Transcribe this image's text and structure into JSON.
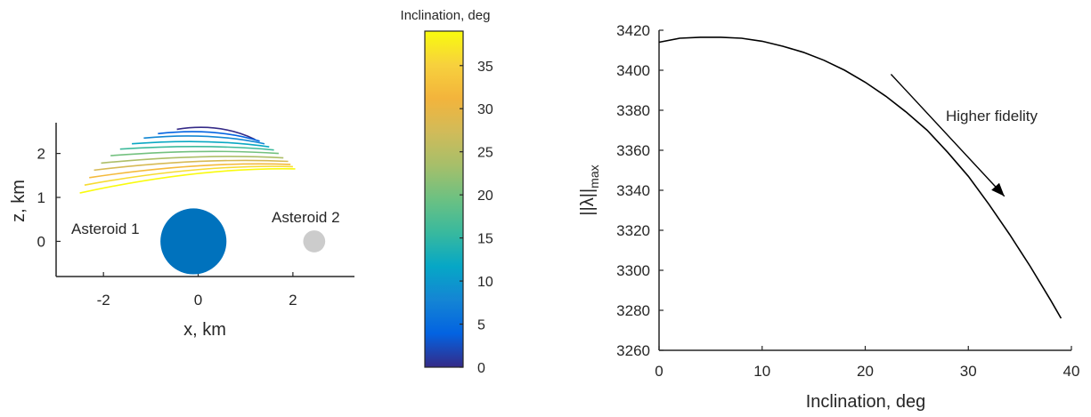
{
  "chart_data": [
    {
      "type": "line",
      "xlabel": "x, km",
      "ylabel": "z, km",
      "xlim": [
        -3,
        3.3
      ],
      "ylim": [
        -0.8,
        2.7
      ],
      "x_ticks": [
        -2,
        0,
        2
      ],
      "x_tick_labels": [
        "-2",
        "0",
        "2"
      ],
      "y_ticks": [
        0,
        1,
        2
      ],
      "y_tick_labels": [
        "0",
        "1",
        "2"
      ],
      "grid": false,
      "colormap_series": "parula",
      "trajectories": [
        {
          "inclination": 0,
          "x_start": 1.2,
          "z_start": 2.32,
          "x_end": -0.45,
          "z_end": 2.55
        },
        {
          "inclination": 4,
          "x_start": 1.3,
          "z_start": 2.28,
          "x_end": -0.85,
          "z_end": 2.45
        },
        {
          "inclination": 8,
          "x_start": 1.4,
          "z_start": 2.22,
          "x_end": -1.15,
          "z_end": 2.35
        },
        {
          "inclination": 12,
          "x_start": 1.5,
          "z_start": 2.15,
          "x_end": -1.4,
          "z_end": 2.22
        },
        {
          "inclination": 16,
          "x_start": 1.6,
          "z_start": 2.08,
          "x_end": -1.65,
          "z_end": 2.1
        },
        {
          "inclination": 20,
          "x_start": 1.7,
          "z_start": 2.0,
          "x_end": -1.85,
          "z_end": 1.95
        },
        {
          "inclination": 24,
          "x_start": 1.8,
          "z_start": 1.9,
          "x_end": -2.05,
          "z_end": 1.78
        },
        {
          "inclination": 28,
          "x_start": 1.9,
          "z_start": 1.82,
          "x_end": -2.2,
          "z_end": 1.62
        },
        {
          "inclination": 32,
          "x_start": 1.95,
          "z_start": 1.75,
          "x_end": -2.3,
          "z_end": 1.45
        },
        {
          "inclination": 36,
          "x_start": 2.0,
          "z_start": 1.7,
          "x_end": -2.4,
          "z_end": 1.28
        },
        {
          "inclination": 39,
          "x_start": 2.05,
          "z_start": 1.65,
          "x_end": -2.5,
          "z_end": 1.1
        }
      ],
      "bodies": [
        {
          "name": "Asteroid 1",
          "label": "Asteroid 1",
          "x": -0.1,
          "z": 0.0,
          "radius": 0.75,
          "color": "#0072BD"
        },
        {
          "name": "Asteroid 2",
          "label": "Asteroid 2",
          "x": 2.45,
          "z": 0.0,
          "radius": 0.25,
          "color": "#cccccc"
        }
      ]
    },
    {
      "type": "heatmap",
      "role": "colorbar",
      "title": "Inclination, deg",
      "colormap": "parula",
      "range": [
        0,
        39
      ],
      "ticks": [
        0,
        5,
        10,
        15,
        20,
        25,
        30,
        35
      ],
      "tick_labels": [
        "0",
        "5",
        "10",
        "15",
        "20",
        "25",
        "30",
        "35"
      ]
    },
    {
      "type": "line",
      "xlabel": "Inclination, deg",
      "ylabel": "||λ||max",
      "ylabel_main": "||λ||",
      "ylabel_sub": "max",
      "xlim": [
        0,
        40
      ],
      "ylim": [
        3260,
        3420
      ],
      "x_ticks": [
        0,
        10,
        20,
        30,
        40
      ],
      "x_tick_labels": [
        "0",
        "10",
        "20",
        "30",
        "40"
      ],
      "y_ticks": [
        3260,
        3280,
        3300,
        3320,
        3340,
        3360,
        3380,
        3400,
        3420
      ],
      "y_tick_labels": [
        "3260",
        "3280",
        "3300",
        "3320",
        "3340",
        "3360",
        "3380",
        "3400",
        "3420"
      ],
      "grid": false,
      "series": [
        {
          "x": [
            0,
            2,
            4,
            6,
            8,
            10,
            12,
            14,
            16,
            18,
            20,
            22,
            24,
            26,
            28,
            30,
            32,
            34,
            36,
            38,
            39
          ],
          "values": [
            3414,
            3416,
            3416.5,
            3416.5,
            3416,
            3414.5,
            3412,
            3409,
            3405,
            3400,
            3394,
            3387,
            3379,
            3370,
            3359,
            3347,
            3333,
            3318,
            3302,
            3285,
            3276
          ],
          "color": "#000000"
        }
      ],
      "annotation": {
        "text": "Higher fidelity",
        "arrow_from": {
          "x": 22.5,
          "y": 3398
        },
        "arrow_to": {
          "x": 33.5,
          "y": 3337
        }
      }
    }
  ]
}
